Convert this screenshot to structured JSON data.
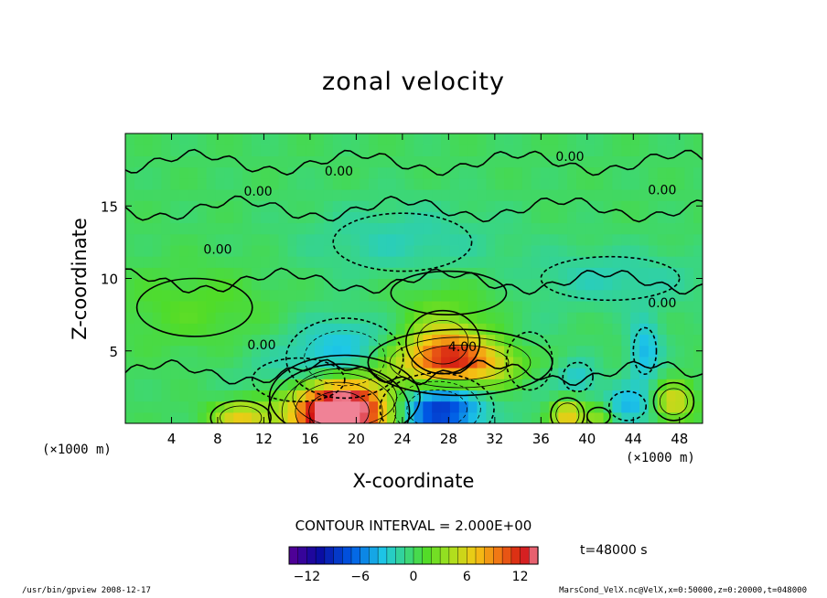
{
  "chart_data": {
    "type": "heatmap",
    "title": "zonal velocity",
    "xlabel": "X-coordinate",
    "ylabel": "Z-coordinate",
    "x_unit_label": "(×1000 m)",
    "y_unit_label": "(×1000 m)",
    "x_ticks": [
      4,
      8,
      12,
      16,
      20,
      24,
      28,
      32,
      36,
      40,
      44,
      48
    ],
    "y_ticks": [
      5,
      10,
      15
    ],
    "xlim": [
      0,
      50
    ],
    "ylim": [
      0,
      20
    ],
    "contour_interval_text": "CONTOUR INTERVAL = 2.000E+00",
    "contour_labels": [
      {
        "text": "0.00",
        "x": 18.5,
        "y": 17.1
      },
      {
        "text": "0.00",
        "x": 38.5,
        "y": 18.1
      },
      {
        "text": "0.00",
        "x": 11.5,
        "y": 15.7
      },
      {
        "text": "0.00",
        "x": 46.5,
        "y": 15.8
      },
      {
        "text": "0.00",
        "x": 8.0,
        "y": 11.7
      },
      {
        "text": "0.00",
        "x": 46.5,
        "y": 8.0
      },
      {
        "text": "0.00",
        "x": 11.8,
        "y": 5.1
      },
      {
        "text": "4.00",
        "x": 29.2,
        "y": 5.0
      }
    ],
    "features": [
      {
        "x": 18.5,
        "y": 0.8,
        "value": 14,
        "sx": 2.6,
        "sy": 1.4
      },
      {
        "x": 19.0,
        "y": 1.8,
        "value": 7,
        "sx": 4.5,
        "sy": 2.0
      },
      {
        "x": 29.0,
        "y": 4.2,
        "value": 9,
        "sx": 4.2,
        "sy": 1.2
      },
      {
        "x": 27.5,
        "y": 5.6,
        "value": 5,
        "sx": 2.2,
        "sy": 1.5
      },
      {
        "x": 10.0,
        "y": 0.4,
        "value": 6,
        "sx": 1.8,
        "sy": 0.8
      },
      {
        "x": 38.3,
        "y": 0.6,
        "value": 7,
        "sx": 1.0,
        "sy": 0.8
      },
      {
        "x": 47.5,
        "y": 1.5,
        "value": 6,
        "sx": 1.2,
        "sy": 0.9
      },
      {
        "x": 41.0,
        "y": 0.5,
        "value": 4,
        "sx": 1.0,
        "sy": 0.6
      },
      {
        "x": 27.0,
        "y": 1.0,
        "value": -10,
        "sx": 2.6,
        "sy": 1.3
      },
      {
        "x": 19.0,
        "y": 4.5,
        "value": -5,
        "sx": 3.5,
        "sy": 1.9
      },
      {
        "x": 15.0,
        "y": 3.0,
        "value": -3,
        "sx": 4.0,
        "sy": 1.5
      },
      {
        "x": 43.5,
        "y": 1.2,
        "value": -4,
        "sx": 1.6,
        "sy": 1.0
      },
      {
        "x": 45.0,
        "y": 5.0,
        "value": -4,
        "sx": 1.0,
        "sy": 1.6
      },
      {
        "x": 39.2,
        "y": 3.2,
        "value": -3,
        "sx": 1.3,
        "sy": 1.0
      },
      {
        "x": 35.0,
        "y": 4.3,
        "value": -2,
        "sx": 2.0,
        "sy": 2.0
      },
      {
        "x": 24.0,
        "y": 12.5,
        "value": -2,
        "sx": 6.0,
        "sy": 2.0
      },
      {
        "x": 42.0,
        "y": 10.0,
        "value": -2,
        "sx": 6.0,
        "sy": 1.5
      },
      {
        "x": 6.0,
        "y": 8.0,
        "value": 1.5,
        "sx": 5.0,
        "sy": 2.0
      },
      {
        "x": 28.0,
        "y": 9.0,
        "value": 1.2,
        "sx": 5.0,
        "sy": 1.5
      }
    ]
  },
  "colorbar": {
    "min": -14,
    "max": 14,
    "tick_labels": [
      "−12",
      "−6",
      "0",
      "6",
      "12"
    ],
    "tick_values": [
      -12,
      -6,
      0,
      6,
      12
    ]
  },
  "time_label": "t=48000 s",
  "footer_left": "/usr/bin/gpview   2008-12-17",
  "footer_right": "MarsCond_VelX.nc@VelX,x=0:50000,z=0:20000,t=048000"
}
